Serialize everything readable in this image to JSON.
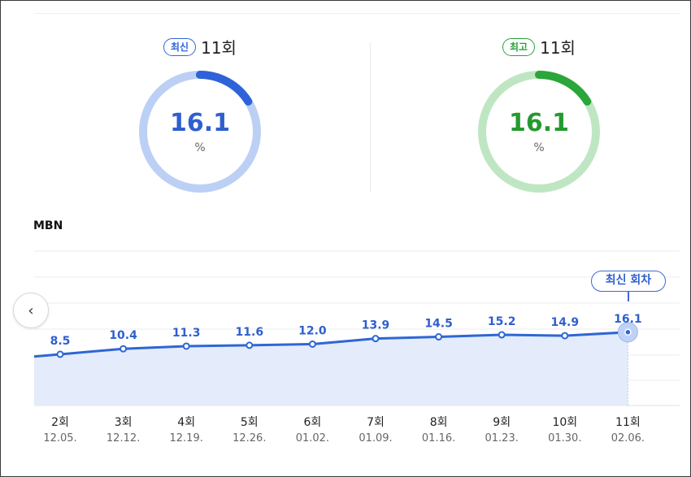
{
  "summary": {
    "latest": {
      "badge": "최신",
      "episode": "11회",
      "value": "16.1",
      "unit": "%",
      "fraction": 0.161
    },
    "best": {
      "badge": "최고",
      "episode": "11회",
      "value": "16.1",
      "unit": "%",
      "fraction": 0.161
    }
  },
  "colors": {
    "blue": "#2f5fcf",
    "blue_ring": "#bcd0f5",
    "blue_arc": "#2e62d9",
    "green": "#26992f",
    "green_ring": "#bfe6c2",
    "green_arc": "#2aa63a",
    "line": "#2f66d5",
    "area": "#e4ecfb"
  },
  "chart_data": {
    "type": "line",
    "title": "MBN",
    "categories": [
      "2회",
      "3회",
      "4회",
      "5회",
      "6회",
      "7회",
      "8회",
      "9회",
      "10회",
      "11회"
    ],
    "dates": [
      "12.05.",
      "12.12.",
      "12.19.",
      "12.26.",
      "01.02.",
      "01.09.",
      "01.16.",
      "01.23.",
      "01.30.",
      "02.06."
    ],
    "values": [
      8.5,
      10.4,
      11.3,
      11.6,
      12.0,
      13.9,
      14.5,
      15.2,
      14.9,
      16.1
    ],
    "value_labels": [
      "8.5",
      "10.4",
      "11.3",
      "11.6",
      "12.0",
      "13.9",
      "14.5",
      "15.2",
      "14.9",
      "16.1"
    ],
    "highlight_label": "최신 회차",
    "highlight_index": 9,
    "unit": "%",
    "grid": true
  }
}
